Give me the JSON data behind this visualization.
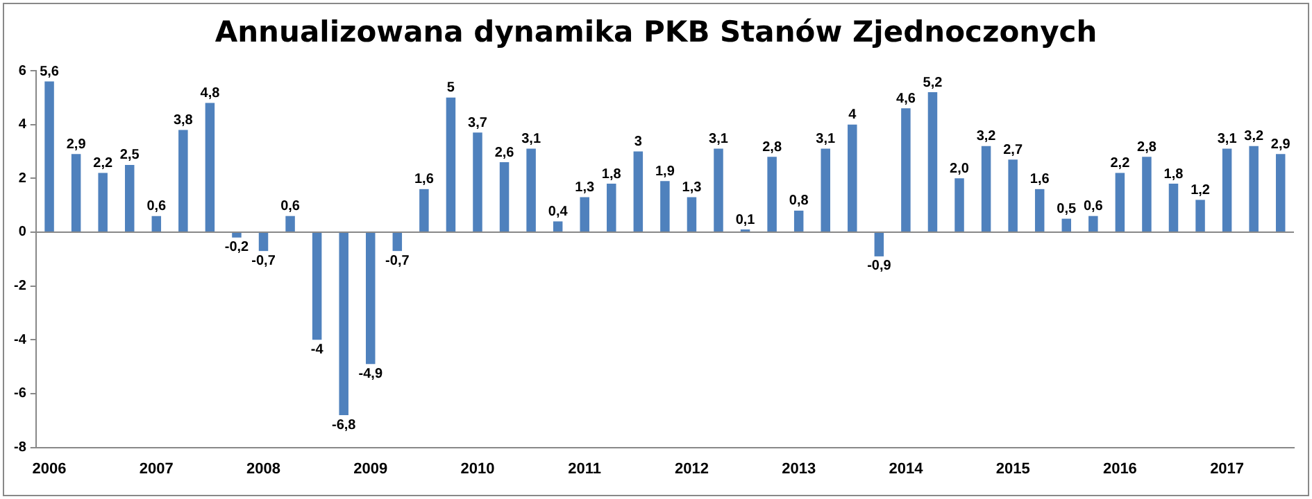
{
  "chart_data": {
    "type": "bar",
    "title": "Annualizowana dynamika PKB Stanów Zjednoczonych",
    "categories": [
      "2006",
      null,
      null,
      null,
      "2007",
      null,
      null,
      null,
      "2008",
      null,
      null,
      null,
      "2009",
      null,
      null,
      null,
      "2010",
      null,
      null,
      null,
      "2011",
      null,
      null,
      null,
      "2012",
      null,
      null,
      null,
      "2013",
      null,
      null,
      null,
      "2014",
      null,
      null,
      null,
      "2015",
      null,
      null,
      null,
      "2016",
      null,
      null,
      null,
      "2017",
      null,
      null
    ],
    "values": [
      5.6,
      2.9,
      2.2,
      2.5,
      0.6,
      3.8,
      4.8,
      -0.2,
      -0.7,
      0.6,
      -4,
      -6.8,
      -4.9,
      -0.7,
      1.6,
      5,
      3.7,
      2.6,
      3.1,
      0.4,
      1.3,
      1.8,
      3,
      1.9,
      1.3,
      3.1,
      0.1,
      2.8,
      0.8,
      3.1,
      4,
      -0.9,
      4.6,
      5.2,
      2.0,
      3.2,
      2.7,
      1.6,
      0.5,
      0.6,
      2.2,
      2.8,
      1.8,
      1.2,
      3.1,
      3.2,
      2.9
    ],
    "value_labels": [
      "5,6",
      "2,9",
      "2,2",
      "2,5",
      "0,6",
      "3,8",
      "4,8",
      "-0,2",
      "-0,7",
      "0,6",
      "-4",
      "-6,8",
      "-4,9",
      "-0,7",
      "1,6",
      "5",
      "3,7",
      "2,6",
      "3,1",
      "0,4",
      "1,3",
      "1,8",
      "3",
      "1,9",
      "1,3",
      "3,1",
      "0,1",
      "2,8",
      "0,8",
      "3,1",
      "4",
      "-0,9",
      "4,6",
      "5,2",
      "2,0",
      "3,2",
      "2,7",
      "1,6",
      "0,5",
      "0,6",
      "2,2",
      "2,8",
      "1,8",
      "1,2",
      "3,1",
      "3,2",
      "2,9"
    ],
    "color": "#4f81bd",
    "ylim": [
      -8,
      6
    ],
    "yticks": [
      -8,
      -6,
      -4,
      -2,
      0,
      2,
      4,
      6
    ],
    "grid": false,
    "ref_lines": [
      {
        "axis": "y",
        "value": 0,
        "color": "#888888"
      }
    ],
    "legend": false
  }
}
